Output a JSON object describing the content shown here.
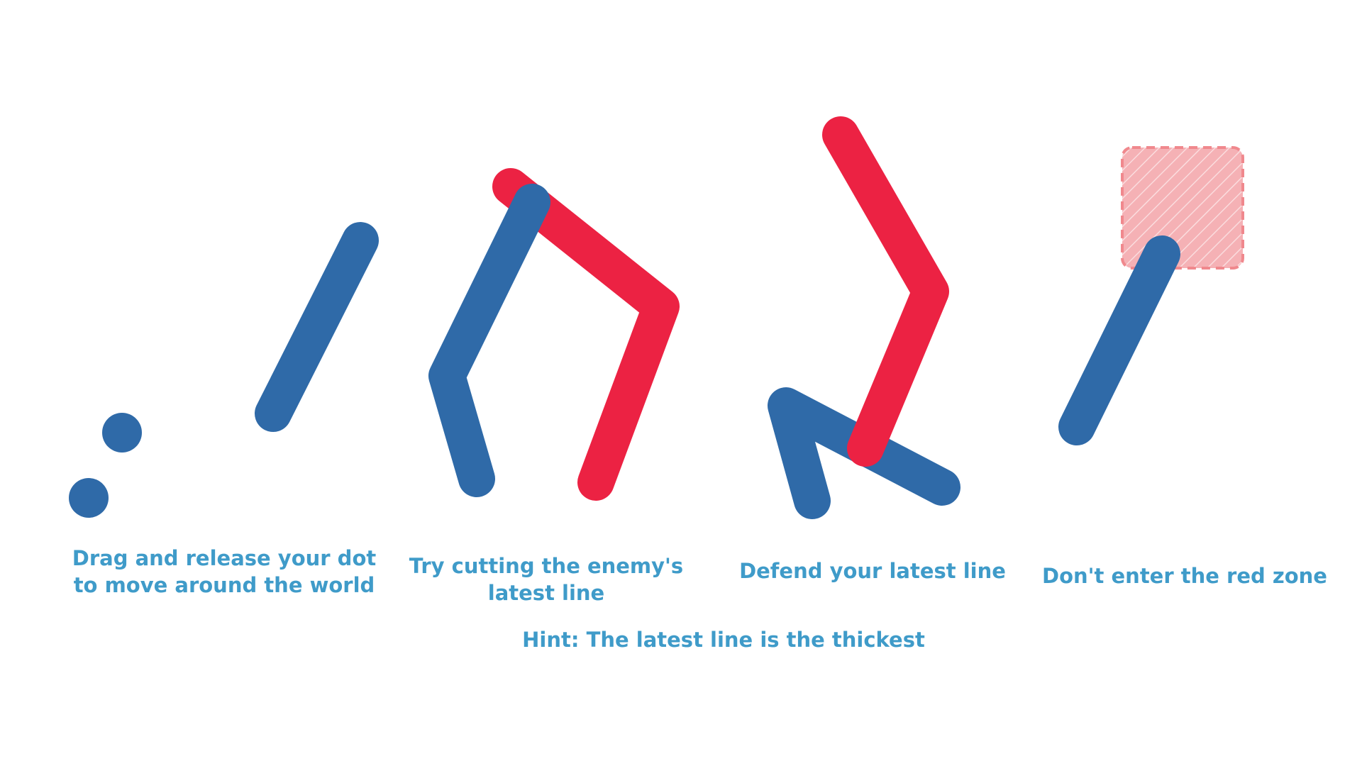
{
  "colors": {
    "player": "#2f6aa8",
    "enemy": "#ec2243",
    "zone_fill": "#f5b1b5",
    "zone_border": "#f0888d",
    "text": "#3f9bc9",
    "background": "#ffffff"
  },
  "captions": {
    "move": [
      "Drag and release your dot",
      "to move around the world"
    ],
    "cut": [
      "Try cutting the enemy's",
      "latest line"
    ],
    "defend": "Defend your latest line",
    "zone": "Don't enter the red zone"
  },
  "hint": "Hint: The latest line is the thickest"
}
